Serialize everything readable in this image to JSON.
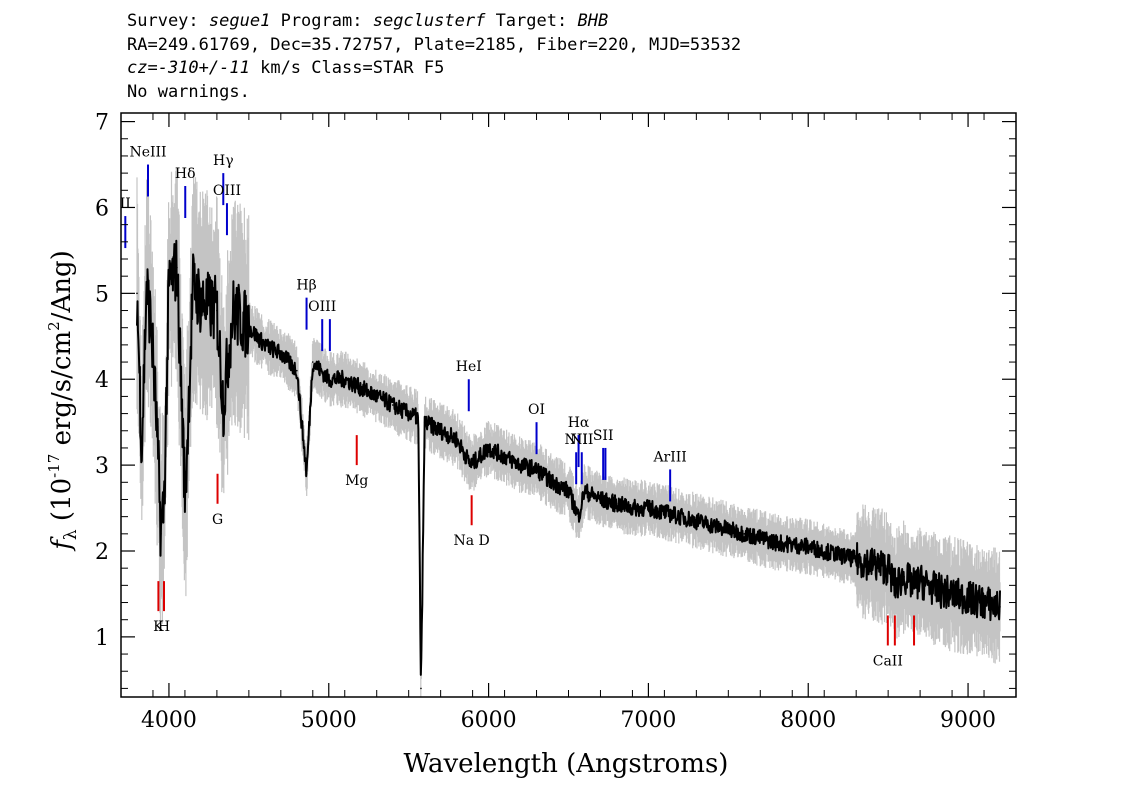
{
  "header": {
    "survey_label": "Survey:",
    "survey": "segue1",
    "program_label": "Program:",
    "program": "segclusterf",
    "target_label": "Target:",
    "target": "BHB",
    "line2": "RA=249.61769, Dec=35.72757, Plate=2185, Fiber=220, MJD=53532",
    "cz_label": "cz=",
    "cz": "-310+/-11",
    "cz_units": "km/s",
    "class": "Class=STAR F5",
    "warnings": "No warnings."
  },
  "chart_data": {
    "type": "line",
    "xlabel": "Wavelength (Angstroms)",
    "ylabel": "fλ (10^-17 erg/s/cm^2/Ang)",
    "xlim": [
      3700,
      9300
    ],
    "ylim": [
      0.3,
      7.1
    ],
    "x_ticks": [
      4000,
      5000,
      6000,
      7000,
      8000,
      9000
    ],
    "y_ticks": [
      1,
      2,
      3,
      4,
      5,
      6,
      7
    ],
    "colors": {
      "flux": "#000000",
      "error": "#c4c4c4",
      "emission": "#0000cc",
      "absorption": "#dd0000"
    },
    "series": [
      {
        "x": [
          3800,
          3830,
          3860,
          3890,
          3920,
          3950,
          3970,
          4000,
          4050,
          4102,
          4150,
          4200,
          4300,
          4340,
          4400,
          4500,
          4600,
          4700,
          4800,
          4861,
          4900,
          5000,
          5100,
          5200,
          5300,
          5400,
          5500,
          5560,
          5577,
          5600,
          5700,
          5800,
          5890,
          6000,
          6100,
          6200,
          6300,
          6400,
          6500,
          6563,
          6600,
          6700,
          6800,
          6900,
          7000,
          7100,
          7200,
          7400,
          7600,
          7800,
          8000,
          8200,
          8400,
          8500,
          8542,
          8600,
          8662,
          8700,
          8800,
          8900,
          9000,
          9100,
          9200
        ],
        "y": [
          5.0,
          3.2,
          5.1,
          4.6,
          3.6,
          2.2,
          2.6,
          5.1,
          5.3,
          2.6,
          5.1,
          4.9,
          4.8,
          3.7,
          4.8,
          4.6,
          4.4,
          4.3,
          4.1,
          2.9,
          4.2,
          4.0,
          4.0,
          3.9,
          3.8,
          3.7,
          3.6,
          3.55,
          0.4,
          3.5,
          3.4,
          3.3,
          3.0,
          3.2,
          3.1,
          3.0,
          2.95,
          2.8,
          2.7,
          2.4,
          2.7,
          2.6,
          2.55,
          2.5,
          2.5,
          2.45,
          2.4,
          2.3,
          2.2,
          2.1,
          2.05,
          1.95,
          1.85,
          1.8,
          1.6,
          1.7,
          1.6,
          1.65,
          1.55,
          1.5,
          1.45,
          1.4,
          1.35
        ]
      }
    ],
    "emission_lines": [
      {
        "label": "NeIII",
        "x": 3869,
        "y": 6.5
      },
      {
        "label": "II",
        "x": 3727,
        "y": 5.9
      },
      {
        "label": "Hδ",
        "x": 4102,
        "y": 6.25
      },
      {
        "label": "Hγ",
        "x": 4340,
        "y": 6.4
      },
      {
        "label": "OIII",
        "x": 4363,
        "y": 6.05
      },
      {
        "label": "Hβ",
        "x": 4861,
        "y": 4.95
      },
      {
        "label": "OIII",
        "x": 4959,
        "y": 4.7
      },
      {
        "label": "",
        "x": 5007,
        "y": 4.7
      },
      {
        "label": "HeI",
        "x": 5876,
        "y": 4.0
      },
      {
        "label": "OI",
        "x": 6300,
        "y": 3.5
      },
      {
        "label": "NII",
        "x": 6548,
        "y": 3.15
      },
      {
        "label": "Hα",
        "x": 6563,
        "y": 3.35
      },
      {
        "label": "NII",
        "x": 6583,
        "y": 3.15
      },
      {
        "label": "SII",
        "x": 6717,
        "y": 3.2
      },
      {
        "label": "",
        "x": 6731,
        "y": 3.2
      },
      {
        "label": "ArIII",
        "x": 7136,
        "y": 2.95
      }
    ],
    "absorption_lines": [
      {
        "label": "K",
        "x": 3934,
        "y": 1.3
      },
      {
        "label": "H",
        "x": 3969,
        "y": 1.3
      },
      {
        "label": "G",
        "x": 4304,
        "y": 2.55
      },
      {
        "label": "Mg",
        "x": 5175,
        "y": 3.0
      },
      {
        "label": "Na D",
        "x": 5894,
        "y": 2.3
      },
      {
        "label": "CaII",
        "x": 8498,
        "y": 0.9
      },
      {
        "label": "",
        "x": 8542,
        "y": 0.9
      },
      {
        "label": "",
        "x": 8662,
        "y": 0.9
      }
    ]
  }
}
